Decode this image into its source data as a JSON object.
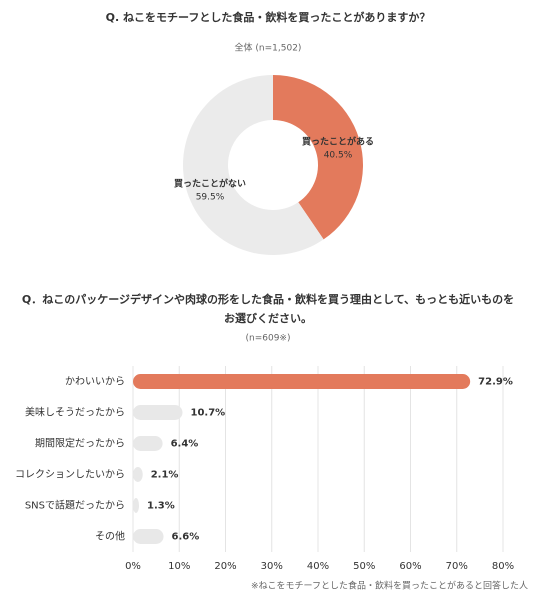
{
  "chart_data": [
    {
      "type": "donut",
      "title": "Q. ねこをモチーフとした食品・飲料を買ったことがありますか？",
      "subtitle": "全体 (n=1,502)",
      "categories": [
        "買ったことがある",
        "買ったことがない"
      ],
      "values": [
        40.5,
        59.5
      ],
      "value_labels": [
        "40.5%",
        "59.5%"
      ],
      "colors": [
        "#e37a5c",
        "#ebebeb"
      ]
    },
    {
      "type": "hbar",
      "title": [
        "Q．ねこのパッケージデザインや肉球の形をした食品・飲料を買う理由として、もっとも近いものを",
        "お選びください。"
      ],
      "subtitle": "(n=609※)",
      "categories": [
        "かわいいから",
        "美味しそうだったから",
        "期間限定だったから",
        "コレクションしたいから",
        "SNSで話題だったから",
        "その他"
      ],
      "values": [
        72.9,
        10.7,
        6.4,
        2.1,
        1.3,
        6.6
      ],
      "value_labels": [
        "72.9%",
        "10.7%",
        "6.4%",
        "2.1%",
        "1.3%",
        "6.6%"
      ],
      "colors": [
        "#e37a5c",
        "#e8e8e8",
        "#e8e8e8",
        "#e8e8e8",
        "#e8e8e8",
        "#e8e8e8"
      ],
      "xlim": [
        0,
        80
      ],
      "xticks": [
        {
          "value": 0,
          "label": "0%"
        },
        {
          "value": 10,
          "label": "10%"
        },
        {
          "value": 20,
          "label": "20%"
        },
        {
          "value": 30,
          "label": "30%"
        },
        {
          "value": 40,
          "label": "40%"
        },
        {
          "value": 50,
          "label": "50%"
        },
        {
          "value": 60,
          "label": "60%"
        },
        {
          "value": 70,
          "label": "70%"
        },
        {
          "value": 80,
          "label": "80%"
        }
      ],
      "grid": true,
      "note": "※ねこをモチーフとした食品・飲料を買ったことがあると回答した人"
    }
  ]
}
